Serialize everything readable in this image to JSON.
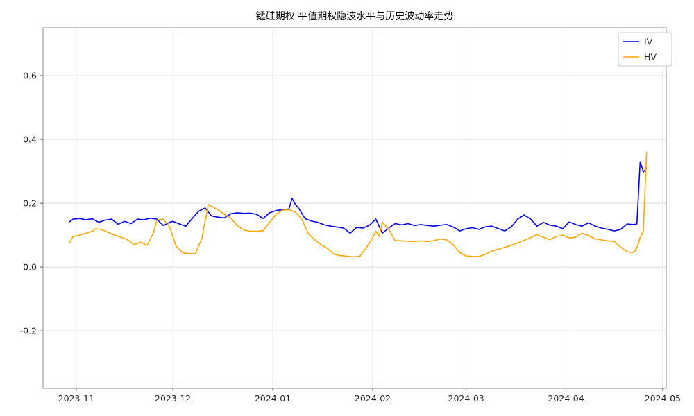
{
  "title": "锰硅期权 平值期权隐波水平与历史波动率走势",
  "chart_data": {
    "type": "line",
    "grid": true,
    "legend_position": "upper right",
    "x_axis": {
      "unit": "days since 2023-11-01",
      "lim": [
        -10.3,
        183.1
      ],
      "ticks": [
        {
          "day": 0,
          "label": "2023-11"
        },
        {
          "day": 30,
          "label": "2023-12"
        },
        {
          "day": 61,
          "label": "2024-01"
        },
        {
          "day": 92,
          "label": "2024-02"
        },
        {
          "day": 121,
          "label": "2024-03"
        },
        {
          "day": 152,
          "label": "2024-04"
        },
        {
          "day": 182,
          "label": "2024-05"
        }
      ]
    },
    "y_axis": {
      "lim": [
        -0.38,
        0.75
      ],
      "ticks": [
        {
          "value": -0.2,
          "label": "-0.2"
        },
        {
          "value": 0.0,
          "label": "0.0"
        },
        {
          "value": 0.2,
          "label": "0.2"
        },
        {
          "value": 0.4,
          "label": "0.4"
        },
        {
          "value": 0.6,
          "label": "0.6"
        }
      ]
    },
    "series": [
      {
        "name": "IV",
        "color": "#0000ee",
        "points": [
          [
            -2,
            0.142
          ],
          [
            -1,
            0.15
          ],
          [
            1,
            0.152
          ],
          [
            3,
            0.148
          ],
          [
            5,
            0.151
          ],
          [
            7,
            0.14
          ],
          [
            9,
            0.147
          ],
          [
            11,
            0.15
          ],
          [
            13,
            0.134
          ],
          [
            15,
            0.143
          ],
          [
            17,
            0.136
          ],
          [
            19,
            0.15
          ],
          [
            21,
            0.148
          ],
          [
            23,
            0.153
          ],
          [
            25,
            0.15
          ],
          [
            27,
            0.13
          ],
          [
            29,
            0.14
          ],
          [
            30,
            0.143
          ],
          [
            32,
            0.135
          ],
          [
            34,
            0.128
          ],
          [
            36,
            0.152
          ],
          [
            38,
            0.175
          ],
          [
            40,
            0.185
          ],
          [
            42,
            0.16
          ],
          [
            44,
            0.156
          ],
          [
            46,
            0.154
          ],
          [
            48,
            0.167
          ],
          [
            50,
            0.17
          ],
          [
            52,
            0.168
          ],
          [
            54,
            0.169
          ],
          [
            56,
            0.165
          ],
          [
            58,
            0.152
          ],
          [
            60,
            0.17
          ],
          [
            62,
            0.177
          ],
          [
            64,
            0.18
          ],
          [
            66,
            0.182
          ],
          [
            67,
            0.215
          ],
          [
            68,
            0.196
          ],
          [
            69,
            0.185
          ],
          [
            71,
            0.152
          ],
          [
            73,
            0.144
          ],
          [
            75,
            0.14
          ],
          [
            77,
            0.132
          ],
          [
            79,
            0.128
          ],
          [
            81,
            0.125
          ],
          [
            83,
            0.122
          ],
          [
            85,
            0.106
          ],
          [
            87,
            0.124
          ],
          [
            89,
            0.122
          ],
          [
            91,
            0.131
          ],
          [
            93,
            0.15
          ],
          [
            95,
            0.106
          ],
          [
            97,
            0.122
          ],
          [
            99,
            0.136
          ],
          [
            101,
            0.132
          ],
          [
            103,
            0.136
          ],
          [
            105,
            0.13
          ],
          [
            107,
            0.133
          ],
          [
            109,
            0.13
          ],
          [
            111,
            0.128
          ],
          [
            113,
            0.131
          ],
          [
            115,
            0.133
          ],
          [
            117,
            0.125
          ],
          [
            119,
            0.113
          ],
          [
            121,
            0.12
          ],
          [
            123,
            0.123
          ],
          [
            125,
            0.118
          ],
          [
            127,
            0.126
          ],
          [
            129,
            0.128
          ],
          [
            131,
            0.12
          ],
          [
            133,
            0.113
          ],
          [
            135,
            0.126
          ],
          [
            137,
            0.15
          ],
          [
            139,
            0.163
          ],
          [
            141,
            0.15
          ],
          [
            143,
            0.128
          ],
          [
            145,
            0.14
          ],
          [
            147,
            0.131
          ],
          [
            149,
            0.128
          ],
          [
            151,
            0.12
          ],
          [
            153,
            0.141
          ],
          [
            155,
            0.133
          ],
          [
            157,
            0.128
          ],
          [
            159,
            0.139
          ],
          [
            161,
            0.128
          ],
          [
            163,
            0.122
          ],
          [
            165,
            0.118
          ],
          [
            167,
            0.113
          ],
          [
            169,
            0.118
          ],
          [
            171,
            0.135
          ],
          [
            173,
            0.133
          ],
          [
            174,
            0.135
          ],
          [
            175,
            0.33
          ],
          [
            176,
            0.298
          ],
          [
            177,
            0.31
          ]
        ]
      },
      {
        "name": "HV",
        "color": "#ffa500",
        "points": [
          [
            -2,
            0.078
          ],
          [
            -1,
            0.095
          ],
          [
            1,
            0.1
          ],
          [
            3,
            0.106
          ],
          [
            5,
            0.112
          ],
          [
            6,
            0.12
          ],
          [
            8,
            0.117
          ],
          [
            10,
            0.108
          ],
          [
            12,
            0.1
          ],
          [
            14,
            0.093
          ],
          [
            16,
            0.085
          ],
          [
            18,
            0.07
          ],
          [
            20,
            0.078
          ],
          [
            22,
            0.068
          ],
          [
            24,
            0.108
          ],
          [
            25,
            0.147
          ],
          [
            27,
            0.15
          ],
          [
            29,
            0.125
          ],
          [
            31,
            0.065
          ],
          [
            33,
            0.045
          ],
          [
            35,
            0.042
          ],
          [
            37,
            0.042
          ],
          [
            39,
            0.09
          ],
          [
            41,
            0.196
          ],
          [
            42,
            0.19
          ],
          [
            44,
            0.18
          ],
          [
            46,
            0.165
          ],
          [
            48,
            0.153
          ],
          [
            50,
            0.13
          ],
          [
            52,
            0.116
          ],
          [
            54,
            0.112
          ],
          [
            56,
            0.112
          ],
          [
            58,
            0.114
          ],
          [
            60,
            0.14
          ],
          [
            62,
            0.165
          ],
          [
            64,
            0.178
          ],
          [
            66,
            0.18
          ],
          [
            68,
            0.172
          ],
          [
            70,
            0.15
          ],
          [
            72,
            0.105
          ],
          [
            74,
            0.085
          ],
          [
            76,
            0.07
          ],
          [
            78,
            0.058
          ],
          [
            80,
            0.04
          ],
          [
            82,
            0.036
          ],
          [
            84,
            0.034
          ],
          [
            86,
            0.032
          ],
          [
            88,
            0.034
          ],
          [
            90,
            0.06
          ],
          [
            92,
            0.092
          ],
          [
            93,
            0.112
          ],
          [
            94,
            0.096
          ],
          [
            95,
            0.14
          ],
          [
            97,
            0.118
          ],
          [
            99,
            0.083
          ],
          [
            101,
            0.082
          ],
          [
            103,
            0.081
          ],
          [
            105,
            0.08
          ],
          [
            107,
            0.082
          ],
          [
            109,
            0.08
          ],
          [
            111,
            0.083
          ],
          [
            113,
            0.088
          ],
          [
            115,
            0.085
          ],
          [
            117,
            0.07
          ],
          [
            119,
            0.045
          ],
          [
            121,
            0.035
          ],
          [
            123,
            0.033
          ],
          [
            125,
            0.033
          ],
          [
            127,
            0.04
          ],
          [
            129,
            0.05
          ],
          [
            131,
            0.056
          ],
          [
            133,
            0.062
          ],
          [
            135,
            0.068
          ],
          [
            137,
            0.076
          ],
          [
            139,
            0.084
          ],
          [
            141,
            0.092
          ],
          [
            143,
            0.102
          ],
          [
            145,
            0.093
          ],
          [
            147,
            0.086
          ],
          [
            149,
            0.096
          ],
          [
            151,
            0.1
          ],
          [
            153,
            0.091
          ],
          [
            155,
            0.094
          ],
          [
            157,
            0.106
          ],
          [
            159,
            0.098
          ],
          [
            161,
            0.088
          ],
          [
            163,
            0.085
          ],
          [
            165,
            0.082
          ],
          [
            167,
            0.08
          ],
          [
            169,
            0.062
          ],
          [
            171,
            0.048
          ],
          [
            173,
            0.045
          ],
          [
            174,
            0.06
          ],
          [
            175,
            0.092
          ],
          [
            176,
            0.112
          ],
          [
            177,
            0.36
          ]
        ]
      }
    ]
  }
}
